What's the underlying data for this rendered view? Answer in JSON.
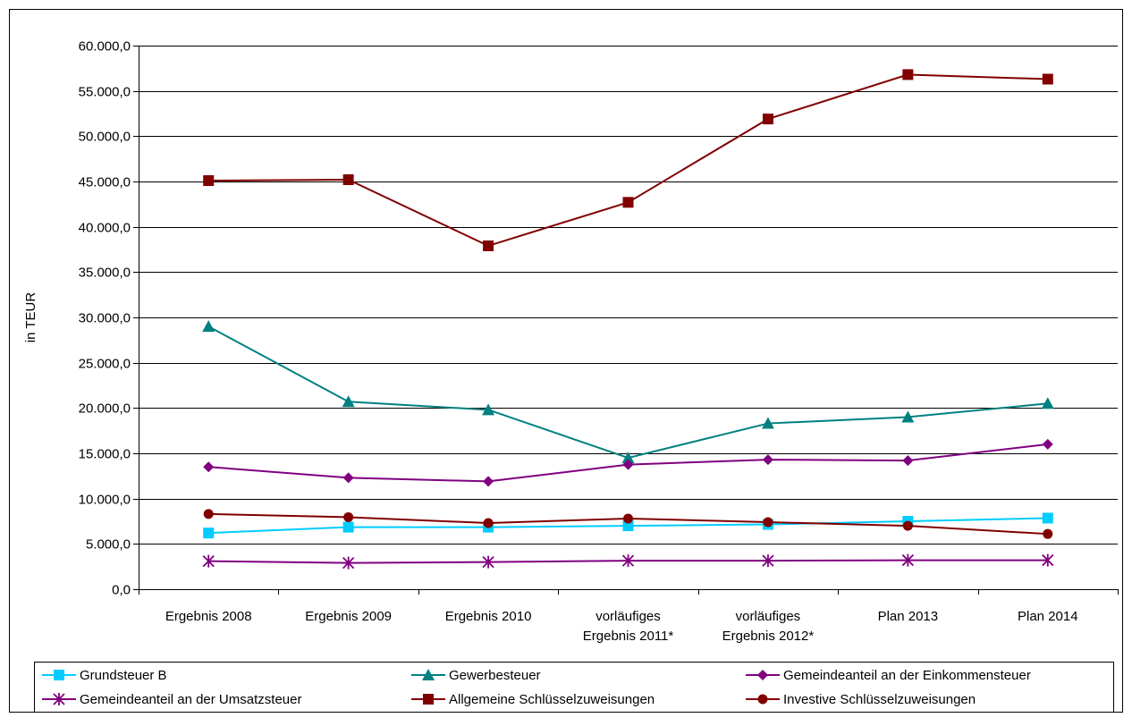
{
  "chart_data": {
    "type": "line",
    "title": "",
    "xlabel": "",
    "ylabel": "in TEUR",
    "ylim": [
      0,
      60000
    ],
    "yticks": [
      "0,0",
      "5.000,0",
      "10.000,0",
      "15.000,0",
      "20.000,0",
      "25.000,0",
      "30.000,0",
      "35.000,0",
      "40.000,0",
      "45.000,0",
      "50.000,0",
      "55.000,0",
      "60.000,0"
    ],
    "categories": [
      [
        "Ergebnis 2008"
      ],
      [
        "Ergebnis 2009"
      ],
      [
        "Ergebnis 2010"
      ],
      [
        "vorläufiges",
        "Ergebnis 2011*"
      ],
      [
        "vorläufiges",
        "Ergebnis 2012*"
      ],
      [
        "Plan 2013"
      ],
      [
        "Plan 2014"
      ]
    ],
    "grid": true,
    "legend_position": "bottom",
    "series": [
      {
        "name": "Grundsteuer B",
        "color": "#00CCFF",
        "marker": "square",
        "values": [
          6200,
          6850,
          6850,
          7000,
          7150,
          7500,
          7850
        ]
      },
      {
        "name": "Gewerbesteuer",
        "color": "#008080",
        "marker": "triangle",
        "values": [
          29000,
          20700,
          19800,
          14500,
          18300,
          19000,
          20500
        ]
      },
      {
        "name": "Gemeindeanteil an der Einkommensteuer",
        "color": "#800080",
        "marker": "diamond",
        "values": [
          13500,
          12300,
          11900,
          13750,
          14300,
          14200,
          16000
        ]
      },
      {
        "name": "Gemeindeanteil an der Umsatzsteuer",
        "color": "#800080",
        "marker": "star",
        "values": [
          3100,
          2900,
          3000,
          3150,
          3150,
          3200,
          3200
        ]
      },
      {
        "name": "Allgemeine Schlüsselzuweisungen",
        "color": "#800000",
        "marker": "square",
        "values": [
          45100,
          45200,
          37900,
          42700,
          51900,
          56800,
          56300
        ]
      },
      {
        "name": "Investive Schlüsselzuweisungen",
        "color": "#800000",
        "marker": "circle",
        "values": [
          8300,
          7950,
          7300,
          7800,
          7400,
          7000,
          6100
        ]
      }
    ]
  }
}
